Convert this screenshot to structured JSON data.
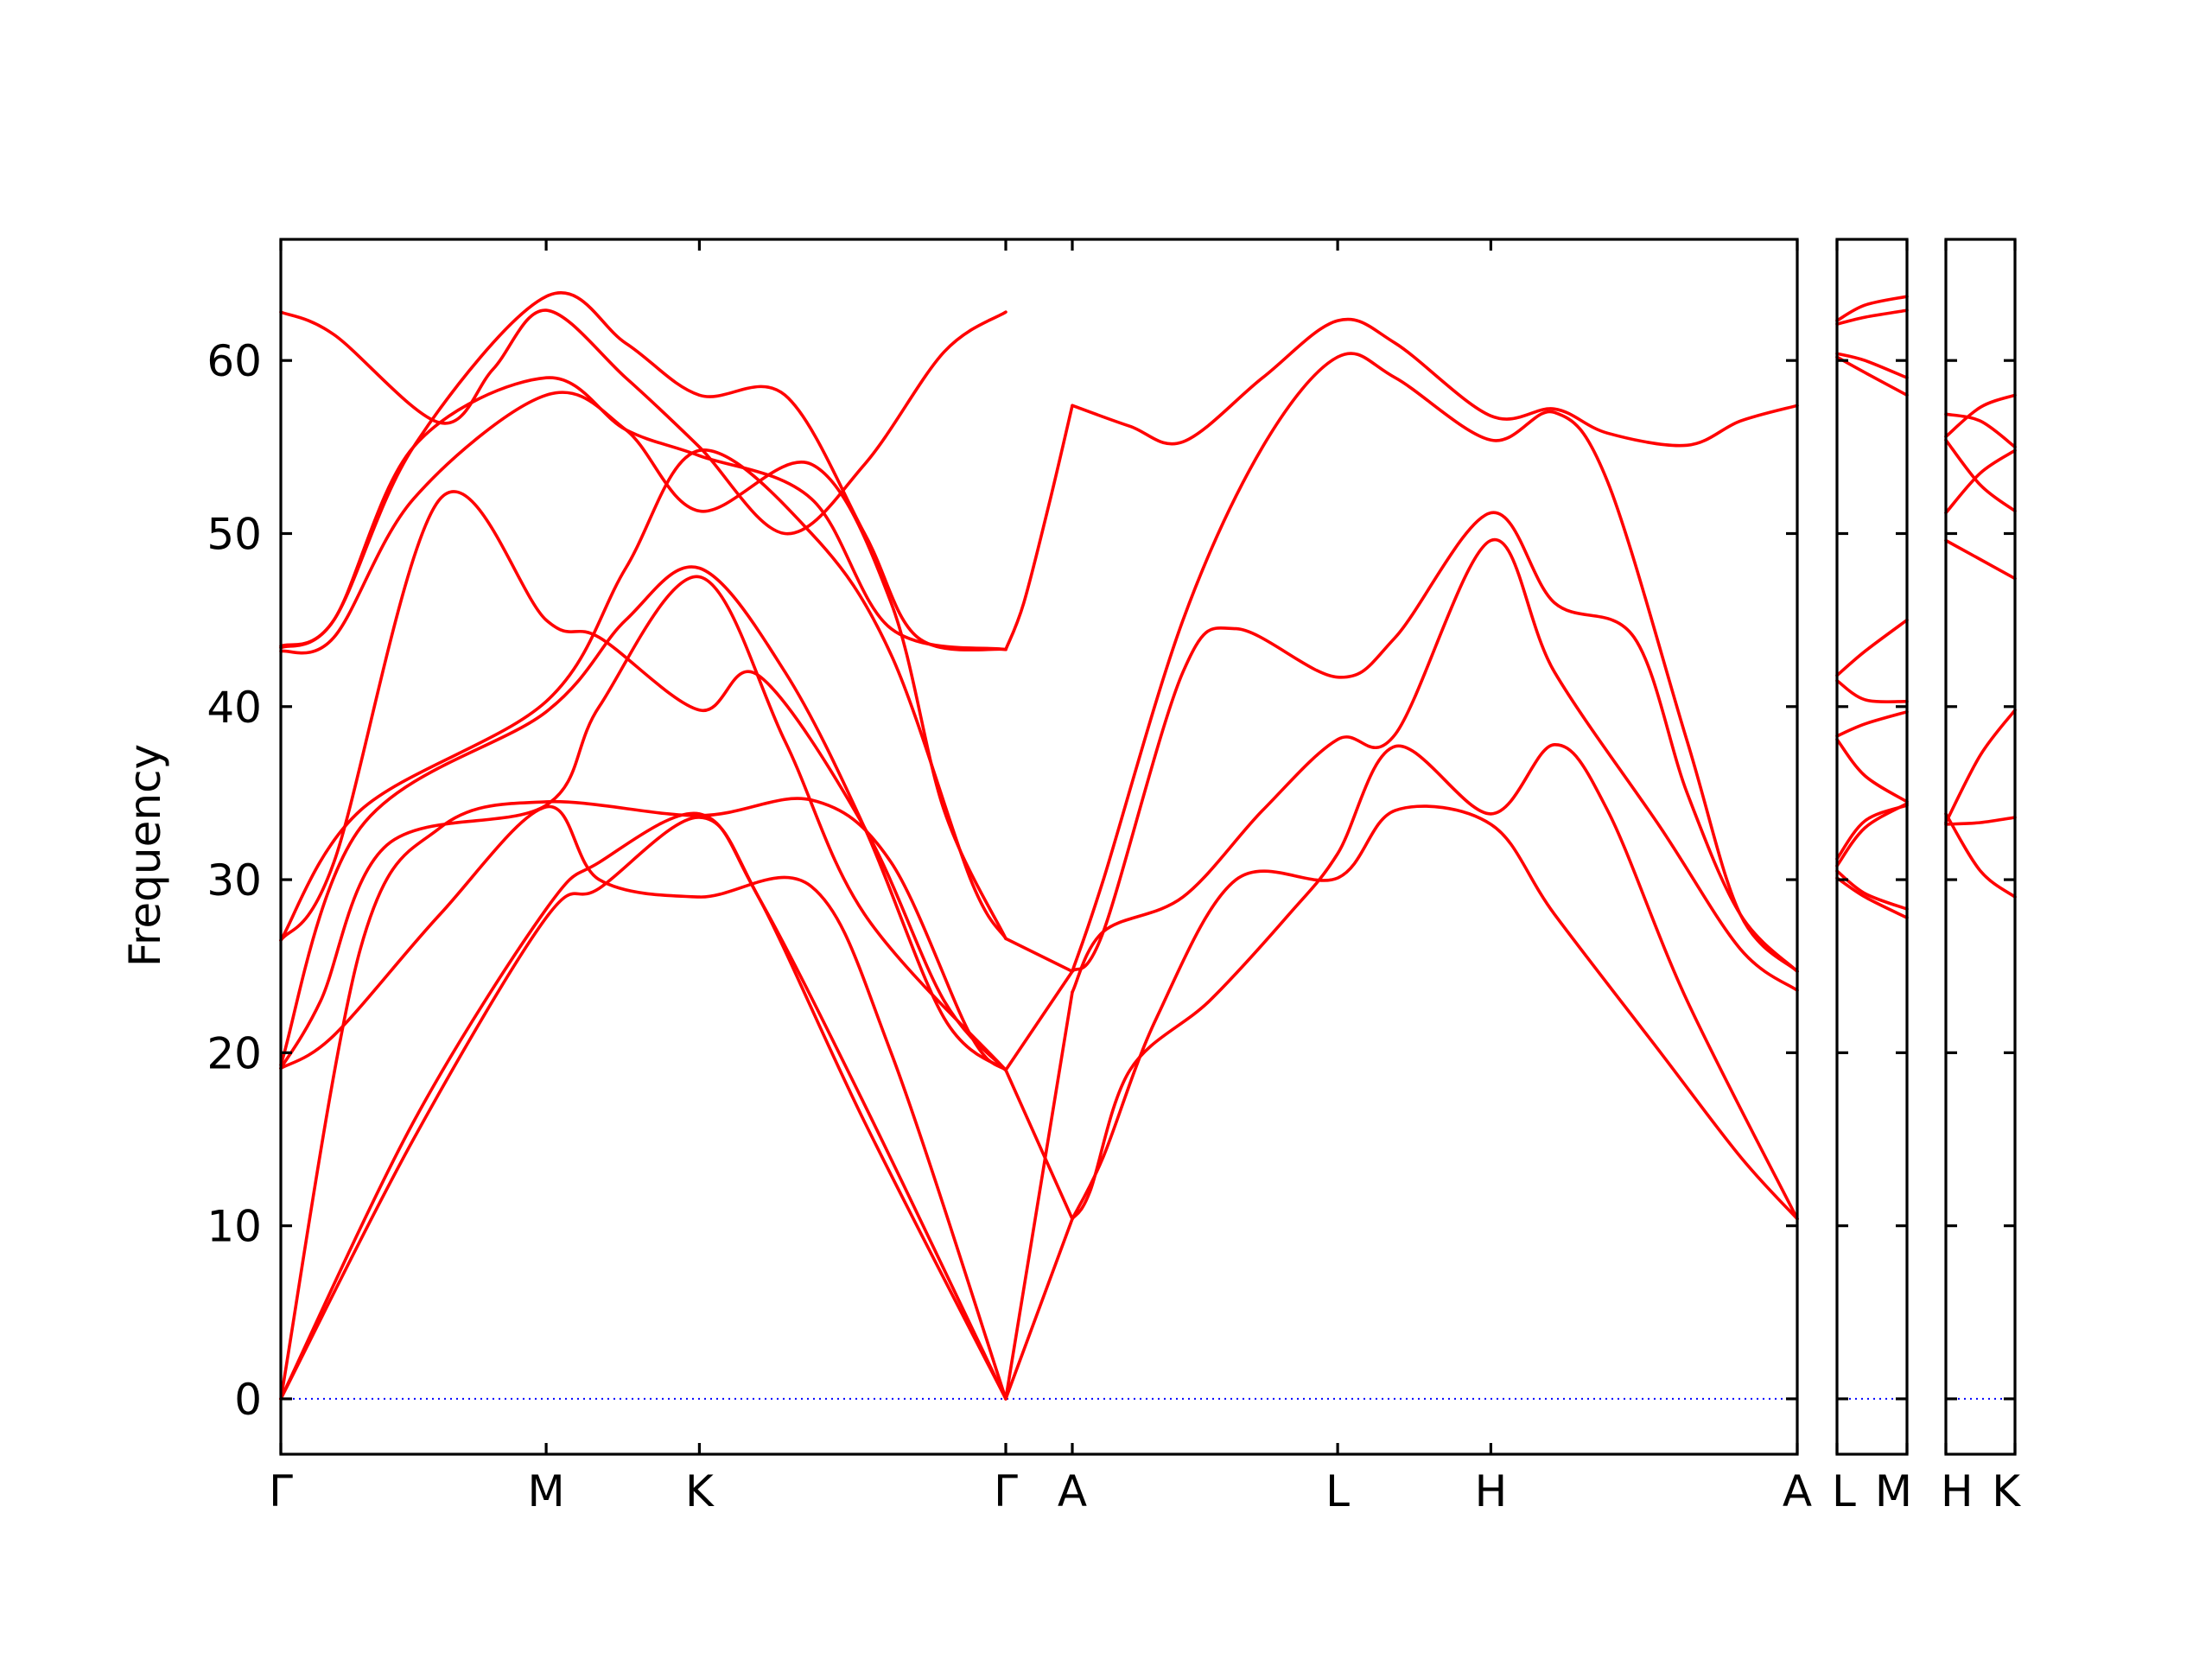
{
  "chart_data": {
    "type": "line",
    "ylabel": "Frequency",
    "ylim": [
      -3.2,
      67
    ],
    "yticks": [
      0,
      10,
      20,
      30,
      40,
      50,
      60
    ],
    "colors": {
      "bands": "#ff0000",
      "zero_line": "#0000ff",
      "frame": "#000000"
    },
    "grid": false,
    "legend": "none",
    "panels": [
      {
        "x_ticks": [
          "Γ",
          "M",
          "K",
          "Γ",
          "A",
          "L",
          "H",
          "A"
        ],
        "tick_positions": [
          0,
          1,
          1.5774,
          2.7321,
          2.9828,
          3.9828,
          4.5602,
          5.7149
        ],
        "bands": [
          [
            [
              0,
              0
            ],
            [
              0.5,
              15
            ],
            [
              1,
              27.8
            ],
            [
              1.2,
              29.5
            ],
            [
              1.5774,
              33.6
            ],
            [
              1.8,
              29
            ],
            [
              2.2,
              16
            ],
            [
              2.7321,
              0
            ]
          ],
          [
            [
              0,
              0
            ],
            [
              0.5,
              16
            ],
            [
              1,
              28.3
            ],
            [
              1.2,
              31
            ],
            [
              1.5774,
              33.8
            ],
            [
              1.8,
              29
            ],
            [
              2.2,
              17
            ],
            [
              2.7321,
              0
            ]
          ],
          [
            [
              0,
              0
            ],
            [
              0.3,
              26
            ],
            [
              0.6,
              33
            ],
            [
              1,
              34.5
            ],
            [
              1.5774,
              33.7
            ],
            [
              2.0,
              34.6
            ],
            [
              2.3,
              31
            ],
            [
              2.6,
              21
            ],
            [
              2.7321,
              19
            ]
          ],
          [
            [
              0,
              19.1
            ],
            [
              0.2,
              21
            ],
            [
              0.6,
              28
            ],
            [
              1,
              34.2
            ],
            [
              1.2,
              30
            ],
            [
              1.5774,
              29
            ],
            [
              2.0,
              29.6
            ],
            [
              2.3,
              20
            ],
            [
              2.7321,
              0
            ]
          ],
          [
            [
              0,
              19.1
            ],
            [
              0.15,
              23
            ],
            [
              0.4,
              32
            ],
            [
              1,
              34.3
            ],
            [
              1.2,
              40
            ],
            [
              1.5774,
              47.5
            ],
            [
              1.9,
              38
            ],
            [
              2.2,
              28
            ],
            [
              2.7321,
              19
            ]
          ],
          [
            [
              0,
              19.3
            ],
            [
              0.3,
              33
            ],
            [
              1,
              39.7
            ],
            [
              1.3,
              45
            ],
            [
              1.5774,
              48
            ],
            [
              1.9,
              42
            ],
            [
              2.2,
              33
            ],
            [
              2.5,
              22
            ],
            [
              2.7321,
              19
            ]
          ],
          [
            [
              0,
              26.5
            ],
            [
              0.3,
              34
            ],
            [
              1,
              40.3
            ],
            [
              1.3,
              48
            ],
            [
              1.5774,
              54.8
            ],
            [
              2.0,
              50
            ],
            [
              2.3,
              43
            ],
            [
              2.6,
              30
            ],
            [
              2.7321,
              26.6
            ]
          ],
          [
            [
              0,
              26.5
            ],
            [
              0.2,
              31
            ],
            [
              0.6,
              52
            ],
            [
              1,
              45
            ],
            [
              1.2,
              44
            ],
            [
              1.5774,
              39.8
            ],
            [
              1.8,
              41.8
            ],
            [
              2.2,
              33
            ],
            [
              2.5,
              23
            ],
            [
              2.7321,
              19
            ]
          ],
          [
            [
              0,
              43.2
            ],
            [
              0.2,
              44
            ],
            [
              0.5,
              52
            ],
            [
              1,
              58
            ],
            [
              1.3,
              56
            ],
            [
              1.5774,
              51.3
            ],
            [
              2.0,
              54
            ],
            [
              2.3,
              46
            ],
            [
              2.5,
              34
            ],
            [
              2.7321,
              26.6
            ]
          ],
          [
            [
              0,
              43.4
            ],
            [
              0.2,
              45
            ],
            [
              0.5,
              55
            ],
            [
              1,
              59
            ],
            [
              1.3,
              56
            ],
            [
              1.5774,
              54.5
            ],
            [
              2.0,
              52
            ],
            [
              2.3,
              44.5
            ],
            [
              2.7321,
              43.3
            ]
          ],
          [
            [
              0,
              62.8
            ],
            [
              0.2,
              61.5
            ],
            [
              0.6,
              56.4
            ],
            [
              0.8,
              59.5
            ],
            [
              1,
              62.9
            ],
            [
              1.3,
              59
            ],
            [
              1.5774,
              55
            ],
            [
              1.9,
              50
            ],
            [
              2.2,
              54
            ],
            [
              2.5,
              60.5
            ],
            [
              2.7321,
              62.8
            ]
          ],
          [
            [
              0,
              43.5
            ],
            [
              0.2,
              45
            ],
            [
              0.5,
              55
            ],
            [
              1,
              63.7
            ],
            [
              1.3,
              61
            ],
            [
              1.5774,
              58
            ],
            [
              1.9,
              58
            ],
            [
              2.2,
              50
            ],
            [
              2.4,
              44
            ],
            [
              2.7321,
              43.3
            ]
          ],
          [
            [
              2.7321,
              0
            ],
            [
              2.9828,
              10.4
            ]
          ],
          [
            [
              2.7321,
              0
            ],
            [
              2.9828,
              23.5
            ]
          ],
          [
            [
              2.7321,
              19
            ],
            [
              2.9828,
              10.4
            ]
          ],
          [
            [
              2.7321,
              19
            ],
            [
              2.9828,
              24.7
            ]
          ],
          [
            [
              2.7321,
              26.6
            ],
            [
              2.9828,
              24.7
            ]
          ],
          [
            [
              2.7321,
              43.3
            ],
            [
              2.8,
              46
            ],
            [
              2.9,
              52
            ],
            [
              2.9828,
              57.4
            ]
          ],
          [
            [
              2.9828,
              10.4
            ],
            [
              3.1,
              14
            ],
            [
              3.3,
              22
            ],
            [
              3.6,
              30
            ],
            [
              3.9828,
              30.1
            ],
            [
              4.2,
              34
            ],
            [
              4.5602,
              33.2
            ],
            [
              4.8,
              28
            ],
            [
              5.2,
              20
            ],
            [
              5.5,
              14
            ],
            [
              5.7149,
              10.4
            ]
          ],
          [
            [
              2.9828,
              10.4
            ],
            [
              3.05,
              12
            ],
            [
              3.2,
              19
            ],
            [
              3.5,
              23
            ],
            [
              3.8,
              28
            ],
            [
              3.9828,
              31.5
            ],
            [
              4.2,
              37.7
            ],
            [
              4.5602,
              33.8
            ],
            [
              4.8,
              37.8
            ],
            [
              5.0,
              34
            ],
            [
              5.3,
              23
            ],
            [
              5.7149,
              10.4
            ]
          ],
          [
            [
              2.9828,
              23.5
            ],
            [
              3.1,
              27
            ],
            [
              3.4,
              29
            ],
            [
              3.7,
              34
            ],
            [
              3.9828,
              38.1
            ],
            [
              4.2,
              38.4
            ],
            [
              4.5602,
              49.6
            ],
            [
              4.8,
              42
            ],
            [
              5.2,
              33
            ],
            [
              5.5,
              26
            ],
            [
              5.7149,
              23.6
            ]
          ],
          [
            [
              2.9828,
              24.7
            ],
            [
              3.1,
              27
            ],
            [
              3.4,
              42
            ],
            [
              3.6,
              44.5
            ],
            [
              3.9828,
              41.7
            ],
            [
              4.2,
              44
            ],
            [
              4.5602,
              51.2
            ],
            [
              4.8,
              46
            ],
            [
              5.1,
              44
            ],
            [
              5.3,
              35
            ],
            [
              5.5,
              28
            ],
            [
              5.7149,
              24.7
            ]
          ],
          [
            [
              2.9828,
              24.7
            ],
            [
              3.1,
              30
            ],
            [
              3.4,
              45
            ],
            [
              3.7,
              55
            ],
            [
              3.9828,
              60.2
            ],
            [
              4.2,
              59
            ],
            [
              4.5602,
              55.4
            ],
            [
              4.8,
              57
            ],
            [
              5.0,
              53
            ],
            [
              5.3,
              38
            ],
            [
              5.5,
              28
            ],
            [
              5.7149,
              24.7
            ]
          ],
          [
            [
              2.9828,
              57.4
            ],
            [
              3.2,
              56.2
            ],
            [
              3.4,
              55.3
            ],
            [
              3.7,
              59
            ],
            [
              3.9828,
              62.3
            ],
            [
              4.2,
              61
            ],
            [
              4.5602,
              56.8
            ],
            [
              4.8,
              57.2
            ],
            [
              5.0,
              55.8
            ],
            [
              5.3,
              55.1
            ],
            [
              5.5,
              56.5
            ],
            [
              5.7149,
              57.4
            ]
          ]
        ]
      },
      {
        "x_ticks": [
          "L",
          "M"
        ],
        "tick_positions": [
          0,
          1
        ],
        "bands": [
          [
            [
              0,
              30.1
            ],
            [
              0.4,
              29
            ],
            [
              1,
              27.8
            ]
          ],
          [
            [
              0,
              30.5
            ],
            [
              0.4,
              29.2
            ],
            [
              1,
              28.3
            ]
          ],
          [
            [
              0,
              31.2
            ],
            [
              0.4,
              33.4
            ],
            [
              1,
              34.3
            ]
          ],
          [
            [
              0,
              30.8
            ],
            [
              0.4,
              33
            ],
            [
              1,
              34.4
            ]
          ],
          [
            [
              0,
              38.1
            ],
            [
              0.4,
              36
            ],
            [
              1,
              34.5
            ]
          ],
          [
            [
              0,
              38.3
            ],
            [
              0.4,
              39
            ],
            [
              1,
              39.7
            ]
          ],
          [
            [
              0,
              41.5
            ],
            [
              0.4,
              40.4
            ],
            [
              1,
              40.3
            ]
          ],
          [
            [
              0,
              41.8
            ],
            [
              0.4,
              43.2
            ],
            [
              1,
              45
            ]
          ],
          [
            [
              0,
              60.2
            ],
            [
              0.4,
              59.3
            ],
            [
              1,
              58
            ]
          ],
          [
            [
              0,
              60.4
            ],
            [
              0.4,
              60
            ],
            [
              1,
              59
            ]
          ],
          [
            [
              0,
              62.1
            ],
            [
              0.4,
              62.5
            ],
            [
              1,
              62.9
            ]
          ],
          [
            [
              0,
              62.3
            ],
            [
              0.4,
              63.2
            ],
            [
              1,
              63.7
            ]
          ]
        ]
      },
      {
        "x_ticks": [
          "H",
          "K"
        ],
        "tick_positions": [
          0,
          1
        ],
        "bands": [
          [
            [
              0,
              33.2
            ],
            [
              0.5,
              33.3
            ],
            [
              1,
              33.6
            ]
          ],
          [
            [
              0,
              33.8
            ],
            [
              0.5,
              30.5
            ],
            [
              1,
              29
            ]
          ],
          [
            [
              0,
              33.3
            ],
            [
              0.5,
              37.2
            ],
            [
              1,
              39.8
            ]
          ],
          [
            [
              0,
              49.6
            ],
            [
              0.5,
              48.5
            ],
            [
              1,
              47.4
            ]
          ],
          [
            [
              0,
              51.2
            ],
            [
              0.5,
              53.5
            ],
            [
              1,
              54.8
            ]
          ],
          [
            [
              0,
              55.4
            ],
            [
              0.5,
              52.8
            ],
            [
              1,
              51.3
            ]
          ],
          [
            [
              0,
              56.9
            ],
            [
              0.5,
              56.5
            ],
            [
              1,
              55
            ]
          ],
          [
            [
              0,
              55.6
            ],
            [
              0.5,
              57.3
            ],
            [
              1,
              58
            ]
          ]
        ]
      }
    ]
  }
}
